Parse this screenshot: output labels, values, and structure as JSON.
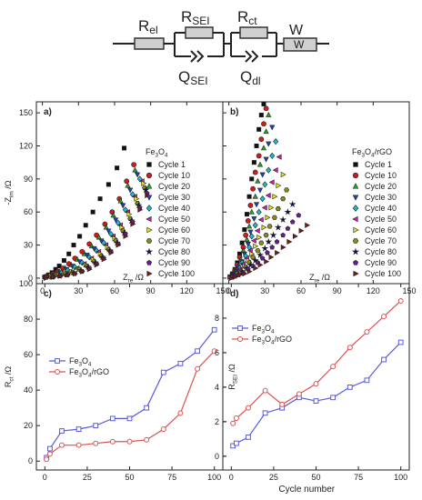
{
  "circuit": {
    "r_el": "R",
    "r_el_sub": "el",
    "r_sei": "R",
    "r_sei_sub": "SEI",
    "r_ct": "R",
    "r_ct_sub": "ct",
    "w": "W",
    "w_box": "W",
    "q_sei": "Q",
    "q_sei_sub": "SEI",
    "q_dl": "Q",
    "q_dl_sub": "dl"
  },
  "chart_data": [
    {
      "panel": "a)",
      "type": "scatter",
      "xlabel_main": "Z",
      "xlabel_sub": "re",
      "xlabel_unit": " /Ω",
      "ylabel": "-Z",
      "ylabel_sub": "im",
      "ylabel_unit": " /Ω",
      "xlim": [
        -5,
        150
      ],
      "ylim": [
        -5,
        160
      ],
      "xticks": [
        0,
        30,
        60,
        90,
        120,
        150
      ],
      "yticks": [
        0,
        30,
        60,
        90,
        120,
        150
      ],
      "legend_title": "Fe",
      "legend_title_sub": "3",
      "legend_title_mid": "O",
      "legend_title_sub2": "4",
      "legend_title_end": "",
      "series": [
        {
          "name": "Cycle 1",
          "marker": "square",
          "color": "#111111",
          "x": [
            2,
            5,
            8,
            11,
            14,
            18,
            22,
            26,
            31,
            36,
            42,
            48,
            55,
            62,
            68
          ],
          "y": [
            1,
            3,
            5,
            8,
            11,
            16,
            22,
            30,
            38,
            48,
            60,
            72,
            85,
            100,
            118
          ]
        },
        {
          "name": "Cycle 10",
          "marker": "circle",
          "color": "#d7191c",
          "x": [
            2,
            5,
            9,
            13,
            17,
            22,
            27,
            33,
            39,
            45,
            52,
            58,
            64,
            70,
            76
          ],
          "y": [
            1,
            2,
            4,
            6,
            9,
            13,
            18,
            24,
            31,
            39,
            49,
            60,
            72,
            88,
            103
          ]
        },
        {
          "name": "Cycle 20",
          "marker": "triangle-up",
          "color": "#2ca02c",
          "x": [
            2,
            6,
            10,
            14,
            19,
            24,
            29,
            35,
            41,
            47,
            53,
            59,
            65,
            71,
            77
          ],
          "y": [
            1,
            2,
            4,
            6,
            9,
            12,
            17,
            22,
            29,
            37,
            46,
            57,
            70,
            84,
            98
          ]
        },
        {
          "name": "Cycle 30",
          "marker": "triangle-down",
          "color": "#1f3fbf",
          "x": [
            2,
            6,
            10,
            15,
            20,
            25,
            31,
            37,
            43,
            49,
            55,
            61,
            67,
            73,
            79
          ],
          "y": [
            1,
            2,
            3,
            5,
            8,
            11,
            15,
            21,
            27,
            34,
            43,
            53,
            66,
            80,
            94
          ]
        },
        {
          "name": "Cycle 40",
          "marker": "diamond",
          "color": "#17becf",
          "x": [
            2,
            6,
            11,
            16,
            21,
            27,
            33,
            39,
            45,
            51,
            57,
            63,
            69,
            75,
            81
          ],
          "y": [
            1,
            2,
            3,
            5,
            7,
            10,
            14,
            19,
            25,
            32,
            40,
            50,
            62,
            76,
            90
          ]
        },
        {
          "name": "Cycle 50",
          "marker": "triangle-left",
          "color": "#cc1fa8",
          "x": [
            2,
            7,
            12,
            17,
            23,
            29,
            35,
            41,
            47,
            53,
            59,
            65,
            71,
            77,
            83
          ],
          "y": [
            1,
            2,
            3,
            4,
            6,
            9,
            13,
            18,
            24,
            30,
            38,
            48,
            60,
            74,
            88
          ]
        },
        {
          "name": "Cycle 60",
          "marker": "triangle-right",
          "color": "#e6e61e",
          "x": [
            3,
            7,
            12,
            18,
            24,
            30,
            36,
            42,
            48,
            54,
            60,
            66,
            72,
            78,
            84
          ],
          "y": [
            1,
            2,
            3,
            4,
            6,
            8,
            12,
            17,
            22,
            28,
            36,
            46,
            58,
            72,
            86
          ]
        },
        {
          "name": "Cycle 70",
          "marker": "hexagon",
          "color": "#8c8c1a",
          "x": [
            3,
            8,
            13,
            19,
            25,
            31,
            37,
            43,
            49,
            55,
            61,
            67,
            73,
            79,
            85
          ],
          "y": [
            1,
            2,
            3,
            4,
            5,
            8,
            11,
            15,
            20,
            26,
            34,
            43,
            54,
            68,
            82
          ]
        },
        {
          "name": "Cycle 80",
          "marker": "star",
          "color": "#0a0a7a",
          "x": [
            3,
            8,
            14,
            20,
            26,
            32,
            38,
            44,
            50,
            56,
            62,
            68,
            74,
            80,
            86
          ],
          "y": [
            1,
            1,
            2,
            3,
            5,
            7,
            10,
            14,
            19,
            25,
            32,
            41,
            52,
            66,
            80
          ]
        },
        {
          "name": "Cycle 90",
          "marker": "pentagon",
          "color": "#6a1a9a",
          "x": [
            3,
            9,
            15,
            21,
            27,
            33,
            39,
            45,
            51,
            57,
            63,
            69,
            75,
            81,
            87
          ],
          "y": [
            1,
            1,
            2,
            3,
            4,
            6,
            9,
            13,
            18,
            24,
            31,
            40,
            51,
            64,
            77
          ]
        },
        {
          "name": "Cycle 100",
          "marker": "triangle-right",
          "color": "#7a1a1a",
          "x": [
            3,
            9,
            15,
            21,
            27,
            33,
            39,
            45,
            51,
            57,
            63,
            69,
            75,
            81,
            87
          ],
          "y": [
            0,
            1,
            2,
            3,
            4,
            6,
            8,
            12,
            17,
            23,
            30,
            38,
            49,
            62,
            75
          ]
        }
      ]
    },
    {
      "panel": "b)",
      "type": "scatter",
      "xlabel_main": "Z",
      "xlabel_sub": "re",
      "xlabel_unit": " /Ω",
      "xlim": [
        -5,
        150
      ],
      "ylim": [
        -5,
        160
      ],
      "xticks": [
        0,
        30,
        60,
        90,
        120,
        150
      ],
      "legend_title": "Fe",
      "legend_title_sub": "3",
      "legend_title_mid": "O",
      "legend_title_sub2": "4",
      "legend_title_end": "/rGO",
      "series": [
        {
          "name": "Cycle 1",
          "marker": "square",
          "color": "#111111",
          "x": [
            1,
            3,
            5,
            7,
            9,
            11,
            13,
            15,
            17,
            19,
            21,
            23,
            25,
            27,
            29
          ],
          "y": [
            1,
            4,
            8,
            14,
            22,
            32,
            44,
            58,
            74,
            90,
            105,
            120,
            135,
            148,
            158
          ]
        },
        {
          "name": "Cycle 10",
          "marker": "circle",
          "color": "#d7191c",
          "x": [
            1,
            3,
            5,
            7,
            9,
            12,
            14,
            16,
            18,
            20,
            22,
            25,
            27,
            29,
            31
          ],
          "y": [
            1,
            3,
            7,
            12,
            19,
            28,
            39,
            52,
            66,
            81,
            96,
            111,
            126,
            140,
            154
          ]
        },
        {
          "name": "Cycle 20",
          "marker": "triangle-up",
          "color": "#2ca02c",
          "x": [
            1,
            3,
            5,
            8,
            10,
            12,
            15,
            17,
            19,
            22,
            24,
            26,
            29,
            31,
            33
          ],
          "y": [
            1,
            3,
            6,
            11,
            17,
            25,
            35,
            47,
            60,
            74,
            88,
            103,
            118,
            133,
            148
          ]
        },
        {
          "name": "Cycle 30",
          "marker": "triangle-down",
          "color": "#1f3fbf",
          "x": [
            1,
            3,
            6,
            8,
            11,
            13,
            16,
            18,
            21,
            23,
            26,
            28,
            31,
            33,
            36
          ],
          "y": [
            1,
            3,
            6,
            10,
            15,
            22,
            31,
            42,
            54,
            67,
            80,
            94,
            108,
            122,
            137
          ]
        },
        {
          "name": "Cycle 40",
          "marker": "diamond",
          "color": "#17becf",
          "x": [
            1,
            3,
            6,
            9,
            11,
            14,
            17,
            19,
            22,
            25,
            28,
            30,
            33,
            36,
            39
          ],
          "y": [
            1,
            2,
            5,
            9,
            14,
            20,
            28,
            38,
            48,
            60,
            72,
            85,
            98,
            111,
            124
          ]
        },
        {
          "name": "Cycle 50",
          "marker": "triangle-left",
          "color": "#cc1fa8",
          "x": [
            1,
            4,
            6,
            9,
            12,
            15,
            18,
            21,
            24,
            27,
            30,
            33,
            36,
            39,
            42
          ],
          "y": [
            1,
            2,
            5,
            8,
            13,
            18,
            25,
            34,
            43,
            53,
            64,
            75,
            87,
            98,
            110
          ]
        },
        {
          "name": "Cycle 60",
          "marker": "triangle-right",
          "color": "#e6e61e",
          "x": [
            1,
            4,
            7,
            10,
            13,
            16,
            19,
            22,
            25,
            29,
            32,
            35,
            38,
            41,
            45
          ],
          "y": [
            1,
            2,
            4,
            7,
            11,
            16,
            22,
            29,
            37,
            46,
            55,
            64,
            74,
            84,
            94
          ]
        },
        {
          "name": "Cycle 70",
          "marker": "hexagon",
          "color": "#8c8c1a",
          "x": [
            1,
            4,
            7,
            10,
            14,
            17,
            20,
            24,
            27,
            31,
            34,
            38,
            41,
            45,
            48
          ],
          "y": [
            1,
            2,
            4,
            6,
            10,
            14,
            19,
            25,
            32,
            39,
            47,
            55,
            63,
            72,
            80
          ]
        },
        {
          "name": "Cycle 80",
          "marker": "star",
          "color": "#0a0a7a",
          "x": [
            2,
            5,
            8,
            11,
            15,
            18,
            22,
            26,
            30,
            33,
            37,
            41,
            45,
            49,
            53
          ],
          "y": [
            1,
            2,
            3,
            6,
            9,
            12,
            16,
            21,
            27,
            33,
            39,
            46,
            53,
            60,
            67
          ]
        },
        {
          "name": "Cycle 90",
          "marker": "pentagon",
          "color": "#6a1a9a",
          "x": [
            2,
            5,
            8,
            12,
            16,
            20,
            24,
            28,
            32,
            36,
            40,
            45,
            49,
            53,
            58
          ],
          "y": [
            1,
            2,
            3,
            5,
            8,
            11,
            14,
            18,
            23,
            28,
            33,
            39,
            45,
            51,
            57
          ]
        },
        {
          "name": "Cycle 100",
          "marker": "triangle-right",
          "color": "#7a1a1a",
          "x": [
            2,
            5,
            9,
            13,
            17,
            22,
            26,
            31,
            35,
            40,
            45,
            50,
            55,
            60,
            65
          ],
          "y": [
            0,
            1,
            3,
            4,
            6,
            9,
            12,
            15,
            19,
            23,
            28,
            33,
            38,
            43,
            48
          ]
        }
      ]
    },
    {
      "panel": "c)",
      "type": "line",
      "xlabel": "",
      "ylabel": "R",
      "ylabel_sub": "ct",
      "ylabel_unit": " /Ω",
      "xlim": [
        -5,
        105
      ],
      "ylim": [
        -5,
        100
      ],
      "xticks": [
        0,
        25,
        50,
        75,
        100
      ],
      "yticks": [
        0,
        20,
        40,
        60,
        80,
        100
      ],
      "legend_position": "center",
      "series": [
        {
          "name": "Fe",
          "name_sub": "3",
          "name_mid": "O",
          "name_sub2": "4",
          "name_end": "",
          "marker": "square",
          "color": "#5b5bd6",
          "x": [
            1,
            3,
            10,
            20,
            30,
            40,
            50,
            60,
            70,
            80,
            90,
            100
          ],
          "y": [
            2,
            7,
            17,
            18,
            20,
            24,
            24,
            30,
            50,
            55,
            62,
            74
          ]
        },
        {
          "name": "Fe",
          "name_sub": "3",
          "name_mid": "O",
          "name_sub2": "4",
          "name_end": "/rGO",
          "marker": "circle",
          "color": "#e05050",
          "x": [
            1,
            3,
            10,
            20,
            30,
            40,
            50,
            60,
            70,
            80,
            90,
            100
          ],
          "y": [
            1,
            4,
            9,
            9,
            10,
            11,
            11,
            12,
            18,
            27,
            52,
            62
          ]
        }
      ]
    },
    {
      "panel": "d)",
      "type": "line",
      "xlabel": "Cycle number",
      "ylabel": "R",
      "ylabel_sub": "SEI",
      "ylabel_unit": " /Ω",
      "xlim": [
        -5,
        105
      ],
      "ylim": [
        -0.8,
        10
      ],
      "xticks": [
        0,
        25,
        50,
        75,
        100
      ],
      "yticks": [
        0,
        2,
        4,
        6,
        8
      ],
      "legend_position": "top-left",
      "series": [
        {
          "name": "Fe",
          "name_sub": "3",
          "name_mid": "O",
          "name_sub2": "4",
          "name_end": "",
          "marker": "square",
          "color": "#5b5bd6",
          "x": [
            1,
            3,
            10,
            20,
            30,
            40,
            50,
            60,
            70,
            80,
            90,
            100
          ],
          "y": [
            0.6,
            0.75,
            1.1,
            2.5,
            2.8,
            3.4,
            3.2,
            3.4,
            4.0,
            4.4,
            5.6,
            6.6
          ]
        },
        {
          "name": "Fe",
          "name_sub": "3",
          "name_mid": "O",
          "name_sub2": "4",
          "name_end": "/rGO",
          "marker": "circle",
          "color": "#e05050",
          "x": [
            1,
            3,
            10,
            20,
            30,
            40,
            50,
            60,
            70,
            80,
            90,
            100
          ],
          "y": [
            1.9,
            2.2,
            2.8,
            3.8,
            3.0,
            3.6,
            4.2,
            5.2,
            6.3,
            7.2,
            8.1,
            9.0
          ]
        }
      ]
    }
  ]
}
